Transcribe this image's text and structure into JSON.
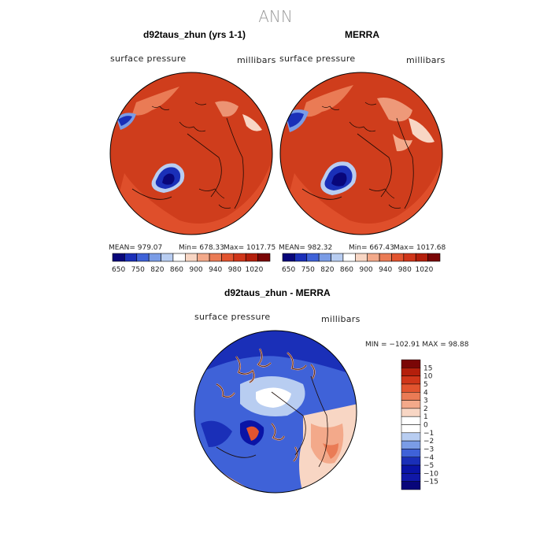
{
  "page_title": "ANN",
  "panels": [
    {
      "title": "d92taus_zhun (yrs 1-1)",
      "left_label": "surface pressure",
      "right_label": "millibars",
      "mean_text": "MEAN= 979.07",
      "min_text": "Min= 678.33",
      "max_text": "Max= 1017.75"
    },
    {
      "title": "MERRA",
      "left_label": "surface pressure",
      "right_label": "millibars",
      "mean_text": "MEAN= 982.32",
      "min_text": "Min= 667.43",
      "max_text": "Max= 1017.68"
    },
    {
      "title": "d92taus_zhun - MERRA",
      "left_label": "surface pressure",
      "right_label": "millibars",
      "minmax_text": "MIN = −102.91 MAX =  98.88"
    }
  ],
  "colorbar_abs": {
    "labels": [
      "650",
      "750",
      "820",
      "860",
      "900",
      "940",
      "980",
      "1020"
    ],
    "colors": [
      "#08067a",
      "#1a2fb8",
      "#3f62d8",
      "#7a9ce6",
      "#b8cdf1",
      "#ffffff",
      "#f8d6c4",
      "#f3a98a",
      "#ea7b55",
      "#e2542f",
      "#d0361a",
      "#b41f0c",
      "#7a0606"
    ]
  },
  "colorbar_diff": {
    "labels": [
      "15",
      "10",
      "5",
      "4",
      "3",
      "2",
      "1",
      "0",
      "−1",
      "−2",
      "−3",
      "−4",
      "−5",
      "−10",
      "−15"
    ],
    "colors": [
      "#7a0606",
      "#b41f0c",
      "#d0361a",
      "#e2542f",
      "#ea7b55",
      "#f3a98a",
      "#f8d6c4",
      "#ffffff",
      "#ffffff",
      "#b8cdf1",
      "#7a9ce6",
      "#3f62d8",
      "#1a2fb8",
      "#0a14a6",
      "#1018a8",
      "#08067a"
    ]
  },
  "chart_data": [
    {
      "type": "heatmap",
      "title": "d92taus_zhun (yrs 1-1)",
      "variable": "surface pressure",
      "units": "millibars",
      "mean": 979.07,
      "min": 678.33,
      "max": 1017.75,
      "levels": [
        650,
        750,
        820,
        860,
        900,
        940,
        980,
        1020
      ]
    },
    {
      "type": "heatmap",
      "title": "MERRA",
      "variable": "surface pressure",
      "units": "millibars",
      "mean": 982.32,
      "min": 667.43,
      "max": 1017.68,
      "levels": [
        650,
        750,
        820,
        860,
        900,
        940,
        980,
        1020
      ]
    },
    {
      "type": "heatmap",
      "title": "d92taus_zhun - MERRA",
      "variable": "surface pressure",
      "units": "millibars",
      "min": -102.91,
      "max": 98.88,
      "levels": [
        15,
        10,
        5,
        4,
        3,
        2,
        1,
        0,
        -1,
        -2,
        -3,
        -4,
        -5,
        -10,
        -15
      ]
    }
  ]
}
